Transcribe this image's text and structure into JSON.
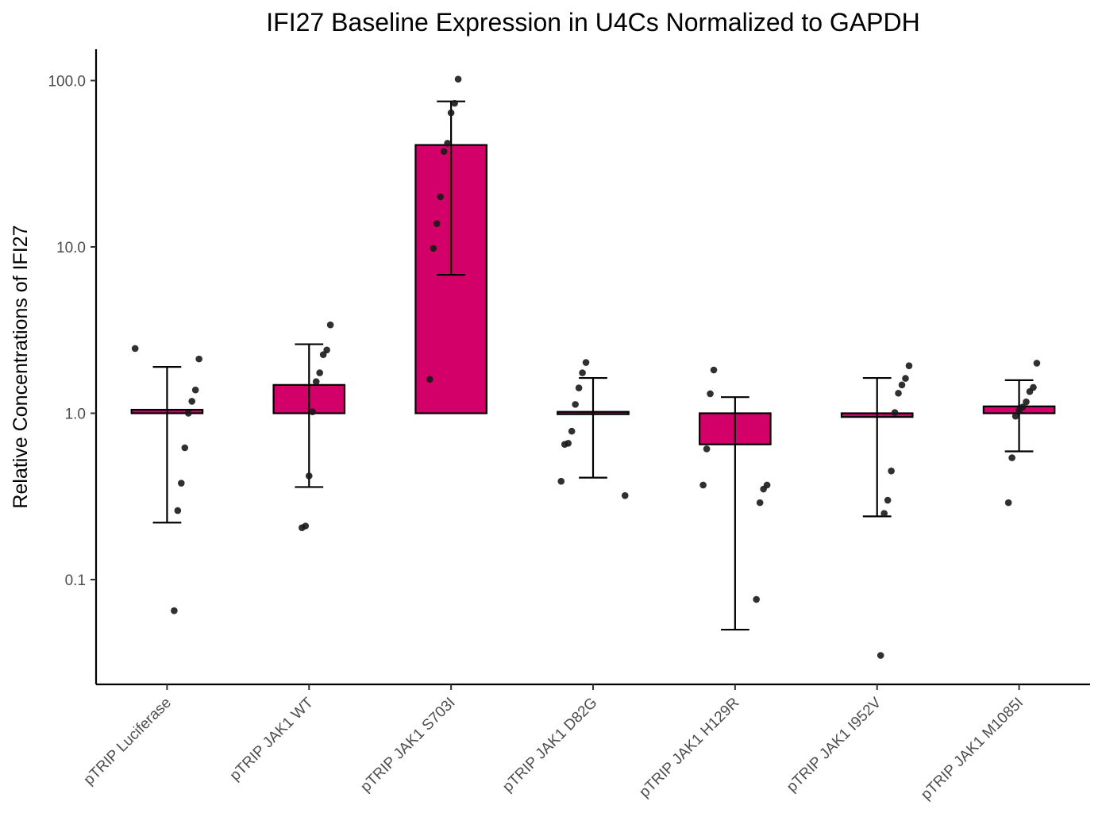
{
  "chart_data": {
    "type": "bar",
    "title": "IFI27 Baseline Expression in U4Cs Normalized to GAPDH",
    "xlabel": "",
    "ylabel": "Relative Concentrations of IFI27",
    "yscale": "log10",
    "ylim": [
      0.025,
      160
    ],
    "yticks": [
      0.1,
      1.0,
      10.0,
      100.0
    ],
    "ytick_labels": [
      "0.1",
      "1.0",
      "10.0",
      "100.0"
    ],
    "baseline": 1.0,
    "grid": false,
    "legend": "none",
    "bar_color": "#D4006A",
    "point_color": "#1a1a1a",
    "categories": [
      "pTRIP Luciferase",
      "pTRIP JAK1 WT",
      "pTRIP JAK1 S703I",
      "pTRIP JAK1 D82G",
      "pTRIP JAK1 H129R",
      "pTRIP JAK1 I952V",
      "pTRIP JAK1 M1085I"
    ],
    "values": [
      1.05,
      1.48,
      41.0,
      1.02,
      0.65,
      0.95,
      1.1
    ],
    "error_low": [
      0.22,
      0.36,
      6.8,
      0.41,
      0.05,
      0.24,
      0.59
    ],
    "error_high": [
      1.9,
      2.6,
      75.0,
      1.63,
      1.25,
      1.63,
      1.58
    ],
    "points": [
      [
        2.45,
        2.12,
        1.38,
        1.18,
        1.0,
        0.62,
        0.38,
        0.26,
        0.065
      ],
      [
        3.4,
        2.4,
        2.25,
        1.75,
        1.55,
        1.02,
        0.42,
        0.21,
        0.205
      ],
      [
        102.0,
        73.0,
        64.0,
        42.0,
        37.5,
        20.0,
        13.8,
        9.8,
        1.6
      ],
      [
        2.02,
        1.75,
        1.42,
        1.13,
        0.78,
        0.66,
        0.65,
        0.39,
        0.32
      ],
      [
        1.82,
        1.31,
        0.61,
        0.37,
        0.37,
        0.35,
        0.29,
        0.076
      ],
      [
        1.93,
        1.62,
        1.48,
        1.32,
        1.01,
        0.45,
        0.3,
        0.25,
        0.035
      ],
      [
        2.0,
        1.43,
        1.35,
        1.17,
        1.09,
        1.04,
        0.96,
        0.54,
        0.29
      ]
    ]
  }
}
